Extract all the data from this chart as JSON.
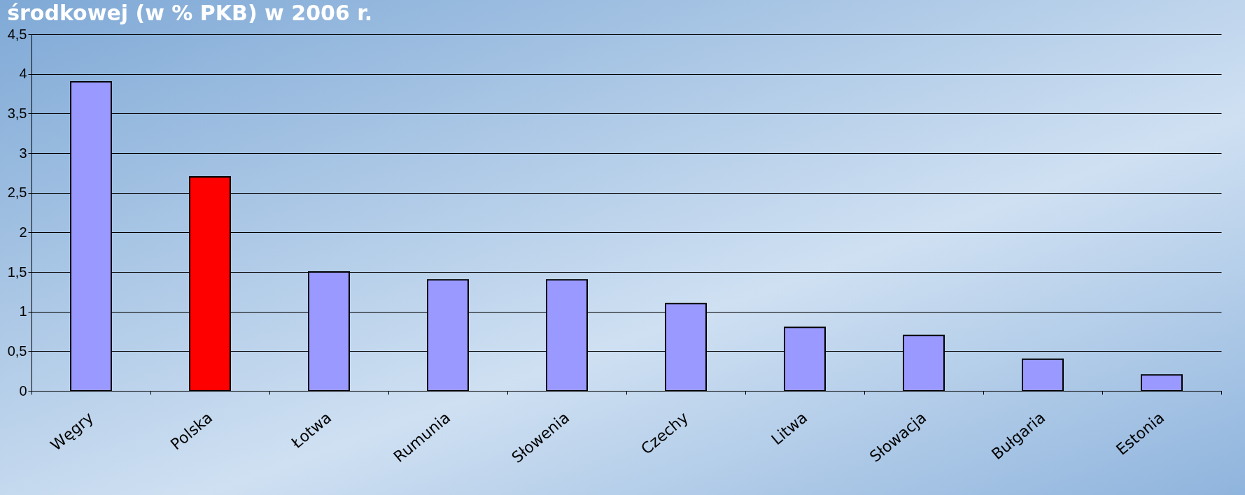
{
  "chart_data": {
    "type": "bar",
    "title": "środkowej (w % PKB) w 2006 r.",
    "categories": [
      "Węgry",
      "Polska",
      "Łotwa",
      "Rumunia",
      "Słowenia",
      "Czechy",
      "Litwa",
      "Słowacja",
      "Bułgaria",
      "Estonia"
    ],
    "values": [
      3.9,
      2.7,
      1.5,
      1.4,
      1.4,
      1.1,
      0.8,
      0.7,
      0.4,
      0.2
    ],
    "colors": [
      "#9999ff",
      "#ff0000",
      "#9999ff",
      "#9999ff",
      "#9999ff",
      "#9999ff",
      "#9999ff",
      "#9999ff",
      "#9999ff",
      "#9999ff"
    ],
    "ylim": [
      0,
      4.5
    ],
    "yticks": [
      0,
      {
        "value": 0.5,
        "label": "0,5"
      },
      1,
      {
        "value": 1.5,
        "label": "1,5"
      },
      2,
      {
        "value": 2.5,
        "label": "2,5"
      },
      3,
      {
        "value": 3.5,
        "label": "3,5"
      },
      4,
      {
        "value": 4.5,
        "label": "4,5"
      }
    ],
    "grid": "y"
  }
}
